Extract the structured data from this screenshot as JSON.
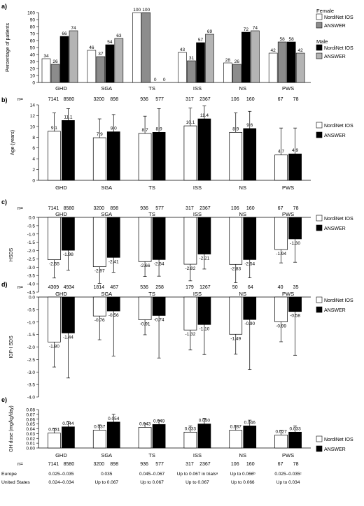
{
  "legend_top": {
    "female_title": "Female",
    "male_title": "Male",
    "items": [
      {
        "label": "NordiNet IOS",
        "color": "#ffffff"
      },
      {
        "label": "ANSWER",
        "color": "#8c8c8c"
      },
      {
        "label": "NordiNet IOS",
        "color": "#000000"
      },
      {
        "label": "ANSWER",
        "color": "#b4b4b4"
      }
    ]
  },
  "legend_common": {
    "items": [
      {
        "label": "NordiNet IOS",
        "color": "#ffffff"
      },
      {
        "label": "ANSWER",
        "color": "#000000"
      }
    ]
  },
  "n_prefix": "n=",
  "n_values": {
    "b": [
      "7141",
      "8580",
      "3200",
      "898",
      "936",
      "577",
      "317",
      "2367",
      "106",
      "160",
      "67",
      "78"
    ],
    "c": [
      "7141",
      "8580",
      "3200",
      "898",
      "936",
      "577",
      "317",
      "2367",
      "106",
      "160",
      "67",
      "78"
    ],
    "d": [
      "4309",
      "4934",
      "1814",
      "467",
      "536",
      "258",
      "179",
      "1267",
      "50",
      "64",
      "40",
      "35"
    ],
    "e": [
      "7141",
      "8580",
      "3200",
      "898",
      "936",
      "577",
      "317",
      "2367",
      "106",
      "160",
      "67",
      "78"
    ]
  },
  "dose_ranges": {
    "europe_label": "Europe",
    "us_label": "United States",
    "europe": [
      "0.025–0.035",
      "0.035",
      "0.045–0.067",
      "Up to 0.067 in trialsᵃ",
      "Up to 0.066ᵇ",
      "0.025–0.035ᶜ"
    ],
    "us": [
      "0.024–0.034",
      "Up to 0.067",
      "Up to 0.067",
      "Up to 0.067",
      "Up to 0.066",
      "Up to 0.034"
    ]
  },
  "chart_data": [
    {
      "panel": "a)",
      "type": "bar",
      "ylabel": "Percentage of patients",
      "ylim": [
        0,
        100
      ],
      "yticks": [
        0,
        10,
        20,
        30,
        40,
        50,
        60,
        70,
        80,
        90,
        100
      ],
      "categories": [
        "GHD",
        "SGA",
        "TS",
        "ISS",
        "NS",
        "PWS"
      ],
      "series": [
        {
          "name": "Female NordiNet IOS",
          "values": [
            34,
            46,
            100,
            43,
            28,
            42
          ]
        },
        {
          "name": "Female ANSWER",
          "values": [
            26,
            37,
            100,
            31,
            26,
            58
          ]
        },
        {
          "name": "Male NordiNet IOS",
          "values": [
            66,
            54,
            0,
            57,
            72,
            58
          ]
        },
        {
          "name": "Male ANSWER",
          "values": [
            74,
            63,
            0,
            69,
            74,
            42
          ]
        }
      ]
    },
    {
      "panel": "b)",
      "type": "bar",
      "ylabel": "Age (years)",
      "ylim": [
        0,
        14
      ],
      "yticks": [
        0,
        2,
        4,
        6,
        8,
        10,
        12,
        14
      ],
      "categories": [
        "GHD",
        "SGA",
        "TS",
        "ISS",
        "NS",
        "PWS"
      ],
      "series": [
        {
          "name": "NordiNet IOS",
          "values": [
            9.1,
            7.9,
            8.7,
            10.1,
            8.9,
            4.7
          ],
          "err": [
            3.4,
            3.5,
            3.2,
            3.3,
            3.6,
            5.0
          ]
        },
        {
          "name": "ANSWER",
          "values": [
            11.1,
            9.0,
            8.9,
            11.4,
            9.6,
            4.9
          ],
          "err": [
            2.2,
            3.2,
            4.4,
            2.4,
            3.2,
            4.8
          ]
        }
      ],
      "value_labels": [
        "9.1",
        "11.1",
        "7.9",
        "9.0",
        "8.7",
        "8.9",
        "10.1",
        "11.4",
        "8.9",
        "9.6",
        "4.7",
        "4.9"
      ]
    },
    {
      "panel": "c)",
      "type": "bar",
      "ylabel": "HSDS",
      "ylim": [
        -4.5,
        0
      ],
      "yticks": [
        0,
        -0.5,
        -1.0,
        -1.5,
        -2.0,
        -2.5,
        -3.0,
        -3.5,
        -4.0,
        -4.5
      ],
      "categories": [
        "GHD",
        "SGA",
        "TS",
        "ISS",
        "NS",
        "PWS"
      ],
      "series": [
        {
          "name": "NordiNet IOS",
          "values": [
            -2.55,
            -2.97,
            -2.66,
            -2.82,
            -2.83,
            -1.94
          ],
          "err": [
            1.1,
            1.0,
            0.9,
            1.0,
            1.1,
            0.8
          ]
        },
        {
          "name": "ANSWER",
          "values": [
            -1.98,
            -2.41,
            -2.54,
            -2.21,
            -2.54,
            -1.3
          ],
          "err": [
            1.2,
            0.9,
            1.0,
            0.9,
            1.1,
            1.4
          ]
        }
      ],
      "value_labels": [
        "-2.55",
        "-1.98",
        "-2.97",
        "-2.41",
        "-2.66",
        "-2.54",
        "-2.82",
        "-2.21",
        "-2.83",
        "-2.54",
        "-1.94",
        "-1.30"
      ]
    },
    {
      "panel": "d)",
      "type": "bar",
      "ylabel": "IGF-I SDS",
      "ylim": [
        -4.0,
        0
      ],
      "yticks": [
        0,
        -0.5,
        -1.0,
        -1.5,
        -2.0,
        -2.5,
        -3.0,
        -3.5,
        -4.0
      ],
      "categories": [
        "GHD",
        "SGA",
        "TS",
        "ISS",
        "NS",
        "PWS"
      ],
      "series": [
        {
          "name": "NordiNet IOS",
          "values": [
            -1.8,
            -0.76,
            -0.91,
            -1.32,
            -1.49,
            -0.99
          ],
          "err": [
            1.0,
            0.95,
            0.6,
            0.8,
            0.8,
            0.8
          ]
        },
        {
          "name": "ANSWER",
          "values": [
            -1.44,
            -0.56,
            -0.74,
            -1.1,
            -0.9,
            -0.58
          ],
          "err": [
            1.8,
            1.8,
            1.7,
            1.2,
            2.0,
            1.75
          ]
        }
      ],
      "value_labels": [
        "-1.80",
        "-1.44",
        "-0.76",
        "-0.56",
        "-0.91",
        "-0.74",
        "-1.32",
        "-1.10",
        "-1.49",
        "-0.90",
        "-0.99",
        "-0.58"
      ]
    },
    {
      "panel": "e)",
      "type": "bar",
      "ylabel": "GH dose (mg/kg/day)",
      "ylim": [
        0,
        0.08
      ],
      "yticks": [
        0,
        0.01,
        0.02,
        0.03,
        0.04,
        0.05,
        0.06,
        0.07,
        0.08
      ],
      "categories": [
        "GHD",
        "SGA",
        "TS",
        "ISS",
        "NS",
        "PWS"
      ],
      "series": [
        {
          "name": "NordiNet IOS",
          "values": [
            0.031,
            0.037,
            0.043,
            0.033,
            0.037,
            0.027
          ],
          "err": [
            0.009,
            0.011,
            0.008,
            0.013,
            0.009,
            0.01
          ]
        },
        {
          "name": "ANSWER",
          "values": [
            0.044,
            0.054,
            0.049,
            0.05,
            0.046,
            0.033
          ],
          "err": [
            0.011,
            0.016,
            0.009,
            0.012,
            0.012,
            0.013
          ]
        }
      ],
      "value_labels": [
        "0.031",
        "0.044",
        "0.037",
        "0.054",
        "0.043",
        "0.049",
        "0.033",
        "0.050",
        "0.037",
        "0.046",
        "0.027",
        "0.033"
      ]
    }
  ]
}
